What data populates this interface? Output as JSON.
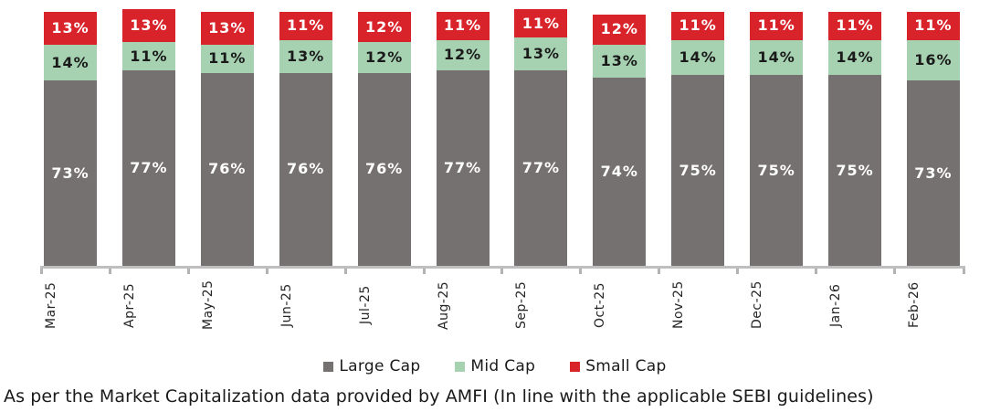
{
  "chart_data": {
    "type": "bar",
    "stacked": true,
    "orientation": "vertical",
    "title": "",
    "xlabel": "",
    "ylabel": "",
    "value_suffix": "%",
    "grid": false,
    "legend_position": "bottom",
    "axis_color": "#bfbfbf",
    "categories": [
      "Mar-25",
      "Apr-25",
      "May-25",
      "Jun-25",
      "Jul-25",
      "Aug-25",
      "Sep-25",
      "Oct-25",
      "Nov-25",
      "Dec-25",
      "Jan-26",
      "Feb-26"
    ],
    "series": [
      {
        "name": "Large Cap",
        "color": "#767171",
        "label_color": "#ffffff",
        "values": [
          73,
          77,
          76,
          76,
          76,
          77,
          77,
          74,
          75,
          75,
          75,
          73
        ]
      },
      {
        "name": "Mid Cap",
        "color": "#a6d2b2",
        "label_color": "#1a1a1a",
        "values": [
          14,
          11,
          11,
          13,
          12,
          12,
          13,
          13,
          14,
          14,
          14,
          16
        ]
      },
      {
        "name": "Small Cap",
        "color": "#d9232a",
        "label_color": "#ffffff",
        "values": [
          13,
          13,
          13,
          11,
          12,
          11,
          11,
          12,
          11,
          11,
          11,
          11
        ]
      }
    ]
  },
  "legend": {
    "items": [
      {
        "label": "Large Cap",
        "color": "#767171"
      },
      {
        "label": "Mid Cap",
        "color": "#a6d2b2"
      },
      {
        "label": "Small Cap",
        "color": "#d9232a"
      }
    ]
  },
  "footer": {
    "text": "As per the Market Capitalization data provided by AMFI (In line with the applicable SEBI guidelines)"
  }
}
